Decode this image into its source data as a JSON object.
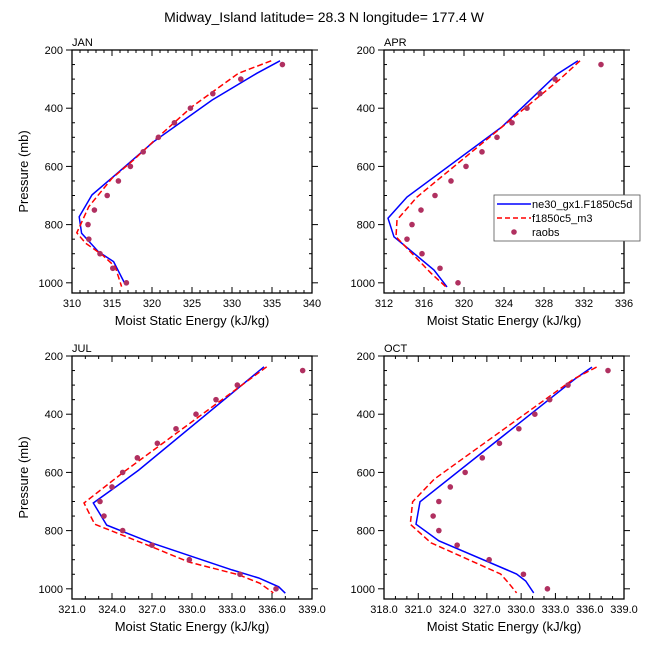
{
  "chart_data": {
    "type": "line",
    "title": "Midway_Island  latitude= 28.3 N longitude= 177.4 W",
    "legend": {
      "placement": "right-middle of APR panel",
      "entries": [
        {
          "name": "ne30_gx1.F1850c5d",
          "style": "solid",
          "color": "#0000ff"
        },
        {
          "name": "f1850c5_m3",
          "style": "dashed",
          "color": "#ff0000"
        },
        {
          "name": "raobs",
          "style": "marker",
          "color": "#b03060"
        }
      ]
    },
    "panels": [
      {
        "label": "JAN",
        "xlabel": "Moist Static Energy (kJ/kg)",
        "ylabel": "Pressure (mb)",
        "xlim": [
          310,
          340
        ],
        "ylim": [
          1035,
          200
        ],
        "y_inverted": true,
        "xticks": [
          "310",
          "315",
          "320",
          "325",
          "330",
          "335",
          "340"
        ],
        "xtick_values": [
          310,
          315,
          320,
          325,
          330,
          335,
          340
        ],
        "xminor_step": 1,
        "yticks": [
          "200",
          "400",
          "600",
          "800",
          "1000"
        ],
        "ytick_values": [
          200,
          400,
          600,
          800,
          1000
        ],
        "yminor_step": 50,
        "series": [
          {
            "name": "ne30_gx1.F1850c5d",
            "x": [
              336.0,
              333.1,
              327.5,
              320.2,
              315.4,
              312.5,
              310.9,
              311.2,
              313.3,
              315.2,
              316.7
            ],
            "y": [
              237,
              280,
              372,
              515,
              630,
              698,
              773,
              830,
              893,
              927,
              1008
            ]
          },
          {
            "name": "f1850c5_m3",
            "x": [
              334.9,
              330.8,
              325.0,
              320.6,
              317.7,
              315.0,
              312.1,
              310.6,
              311.7,
              313.8,
              315.4,
              316.2
            ],
            "y": [
              237,
              280,
              395,
              503,
              578,
              641,
              738,
              828,
              864,
              904,
              945,
              1013
            ]
          },
          {
            "name": "raobs",
            "x": [
              336.3,
              331.1,
              327.6,
              324.8,
              322.8,
              320.8,
              318.9,
              317.3,
              315.8,
              314.4,
              312.8,
              312.0,
              312.1,
              313.5,
              315.1,
              316.8
            ],
            "y": [
              250,
              300,
              350,
              400,
              450,
              500,
              550,
              600,
              650,
              700,
              750,
              800,
              850,
              900,
              950,
              1000
            ]
          }
        ]
      },
      {
        "label": "APR",
        "xlabel": "Moist Static Energy (kJ/kg)",
        "ylabel": "",
        "xlim": [
          312,
          336
        ],
        "ylim": [
          1035,
          200
        ],
        "y_inverted": true,
        "xticks": [
          "312",
          "316",
          "320",
          "324",
          "328",
          "332",
          "336"
        ],
        "xtick_values": [
          312,
          316,
          320,
          324,
          328,
          332,
          336
        ],
        "xminor_step": 1,
        "yticks": [
          "200",
          "400",
          "600",
          "800",
          "1000"
        ],
        "ytick_values": [
          200,
          400,
          600,
          800,
          1000
        ],
        "yminor_step": 50,
        "series": [
          {
            "name": "ne30_gx1.F1850c5d",
            "x": [
              331.4,
              329.3,
              323.8,
              314.3,
              312.4,
              313.0,
              317.0,
              318.3
            ],
            "y": [
              237,
              283,
              464,
              705,
              778,
              842,
              956,
              1014
            ]
          },
          {
            "name": "f1850c5_m3",
            "x": [
              331.6,
              329.5,
              315.3,
              313.3,
              313.2,
              316.7,
              318.2
            ],
            "y": [
              237,
              303,
              705,
              784,
              842,
              967,
              1014
            ]
          },
          {
            "name": "raobs",
            "x": [
              333.7,
              329.1,
              327.6,
              326.3,
              324.8,
              323.3,
              321.8,
              320.2,
              318.7,
              317.1,
              315.7,
              314.8,
              314.3,
              315.8,
              317.6,
              319.4
            ],
            "y": [
              250,
              300,
              350,
              400,
              450,
              500,
              550,
              600,
              650,
              700,
              750,
              800,
              850,
              900,
              950,
              1000
            ]
          }
        ]
      },
      {
        "label": "JUL",
        "xlabel": "Moist Static Energy (kJ/kg)",
        "ylabel": "Pressure (mb)",
        "xlim": [
          321,
          339
        ],
        "ylim": [
          1035,
          200
        ],
        "y_inverted": true,
        "xticks": [
          "321.0",
          "324.0",
          "327.0",
          "330.0",
          "333.0",
          "336.0",
          "339.0"
        ],
        "xtick_values": [
          321,
          324,
          327,
          330,
          333,
          336,
          339
        ],
        "xminor_step": 1,
        "yticks": [
          "200",
          "400",
          "600",
          "800",
          "1000"
        ],
        "ytick_values": [
          200,
          400,
          600,
          800,
          1000
        ],
        "yminor_step": 50,
        "series": [
          {
            "name": "ne30_gx1.F1850c5d",
            "x": [
              335.4,
              326.0,
              325.0,
              322.6,
              323.6,
              327.0,
              333.0,
              335.0,
              336.5,
              337.0
            ],
            "y": [
              237,
              592,
              626,
              705,
              781,
              843,
              935,
              963,
              993,
              1015
            ]
          },
          {
            "name": "f1850c5_m3",
            "x": [
              335.6,
              324.9,
              321.9,
              322.7,
              327.0,
              329.75,
              333.5,
              335.1,
              336.1
            ],
            "y": [
              237,
              598,
              705,
              778,
              856,
              908,
              952,
              981,
              1014
            ]
          },
          {
            "name": "raobs",
            "x": [
              338.3,
              333.4,
              331.8,
              330.3,
              328.8,
              327.4,
              325.9,
              324.8,
              324.0,
              323.1,
              323.4,
              324.8,
              327.0,
              329.8,
              333.6,
              336.3
            ],
            "y": [
              250,
              300,
              350,
              400,
              450,
              500,
              550,
              600,
              650,
              700,
              750,
              800,
              850,
              900,
              950,
              1000
            ]
          }
        ]
      },
      {
        "label": "OCT",
        "xlabel": "Moist Static Energy (kJ/kg)",
        "ylabel": "",
        "xlim": [
          318,
          339
        ],
        "ylim": [
          1035,
          200
        ],
        "y_inverted": true,
        "xticks": [
          "318.0",
          "321.0",
          "324.0",
          "327.0",
          "330.0",
          "333.0",
          "336.0",
          "339.0"
        ],
        "xtick_values": [
          318,
          321,
          324,
          327,
          330,
          333,
          336,
          339
        ],
        "xminor_step": 1,
        "yticks": [
          "200",
          "400",
          "600",
          "800",
          "1000"
        ],
        "ytick_values": [
          200,
          400,
          600,
          800,
          1000
        ],
        "yminor_step": 50,
        "series": [
          {
            "name": "ne30_gx1.F1850c5d",
            "x": [
              336.2,
              334.7,
              321.15,
              320.8,
              322.8,
              329.6,
              330.4,
              331.1
            ],
            "y": [
              238,
              279,
              701,
              778,
              835,
              949,
              973,
              1014
            ]
          },
          {
            "name": "f1850c5_m3",
            "x": [
              336.6,
              334.6,
              322.4,
              320.5,
              320.3,
              322.1,
              328.2,
              328.9,
              329.6
            ],
            "y": [
              238,
              279,
              623,
              701,
              778,
              842,
              949,
              980,
              1014
            ]
          },
          {
            "name": "raobs",
            "x": [
              337.6,
              334.1,
              332.5,
              331.2,
              329.8,
              328.1,
              326.6,
              325.1,
              323.8,
              322.8,
              322.3,
              322.8,
              324.4,
              327.2,
              330.2,
              332.3
            ],
            "y": [
              250,
              300,
              350,
              400,
              450,
              500,
              550,
              600,
              650,
              700,
              750,
              800,
              850,
              900,
              950,
              1000
            ]
          }
        ]
      }
    ]
  }
}
